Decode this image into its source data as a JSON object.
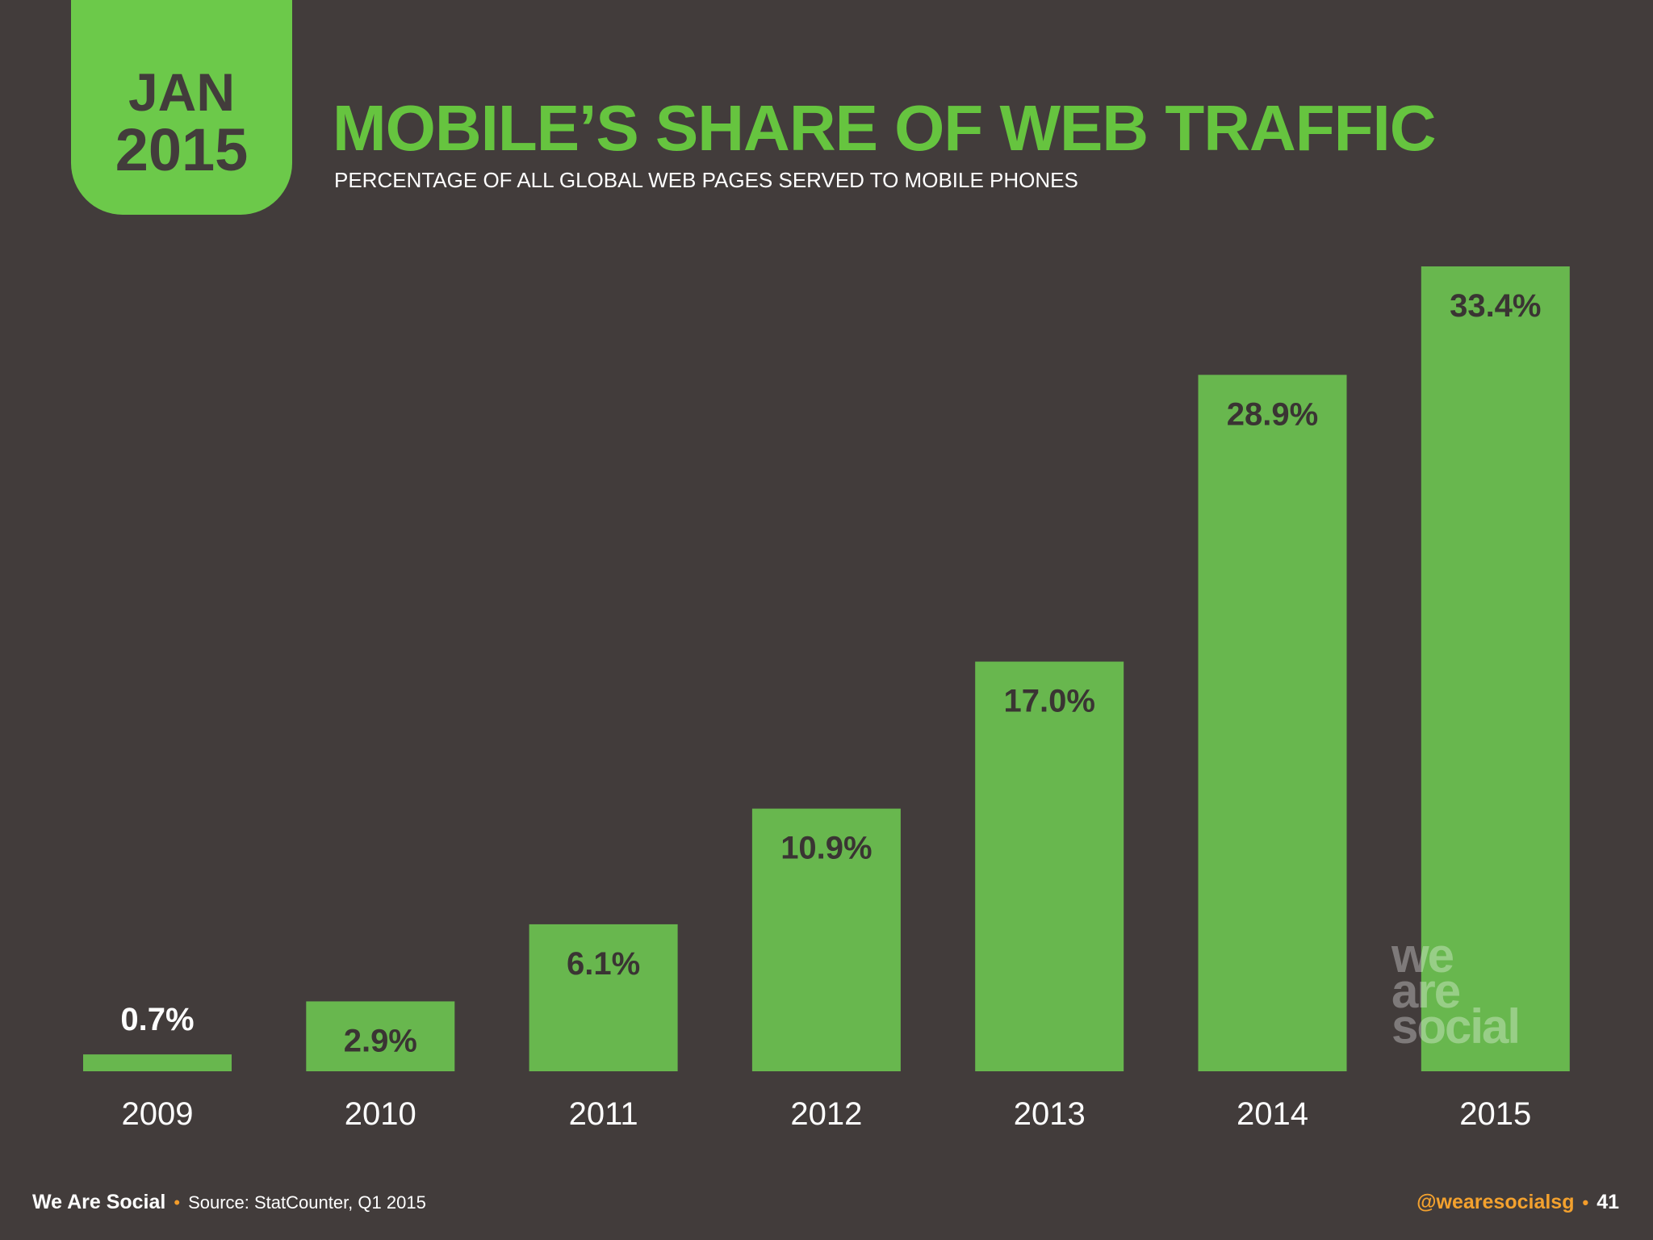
{
  "badge": {
    "month": "JAN",
    "year": "2015"
  },
  "title": "MOBILE’S SHARE OF WEB TRAFFIC",
  "subtitle": "PERCENTAGE OF ALL GLOBAL WEB PAGES SERVED TO MOBILE PHONES",
  "watermark": {
    "line1": "we",
    "line2": "are",
    "line3": "social"
  },
  "footer": {
    "brand": "We Are Social",
    "source": "Source: StatCounter, Q1 2015",
    "handle": "@wearesocialsg",
    "page": "41"
  },
  "colors": {
    "background": "#423c3b",
    "bar": "#68b74e",
    "title": "#66c43f",
    "accent": "#f39c2a"
  },
  "chart_data": {
    "type": "bar",
    "title": "MOBILE’S SHARE OF WEB TRAFFIC",
    "subtitle": "PERCENTAGE OF ALL GLOBAL WEB PAGES SERVED TO MOBILE PHONES",
    "categories": [
      "2009",
      "2010",
      "2011",
      "2012",
      "2013",
      "2014",
      "2015"
    ],
    "values": [
      0.7,
      2.9,
      6.1,
      10.9,
      17.0,
      28.9,
      33.4
    ],
    "data_labels": [
      "0.7%",
      "2.9%",
      "6.1%",
      "10.9%",
      "17.0%",
      "28.9%",
      "33.4%"
    ],
    "unit": "%",
    "xlabel": "",
    "ylabel": "",
    "ylim": [
      0,
      33.4
    ],
    "grid": false,
    "legend": "none"
  }
}
